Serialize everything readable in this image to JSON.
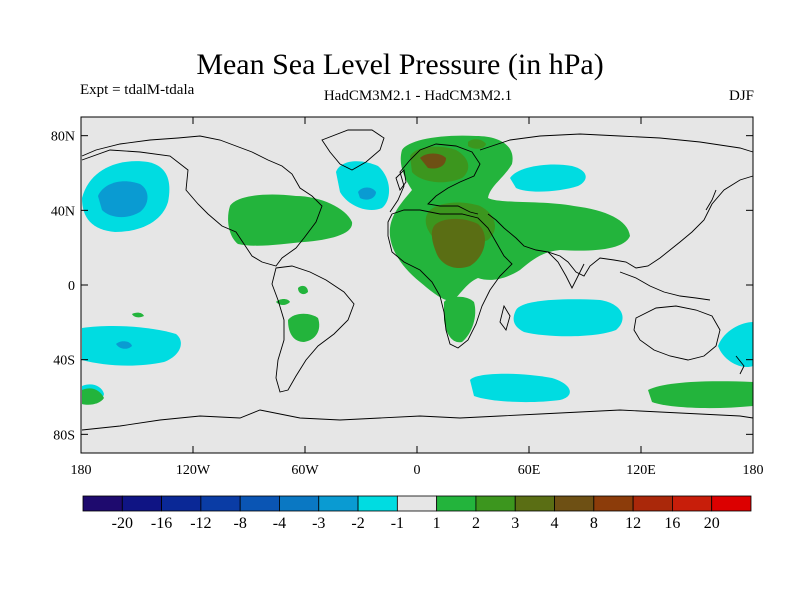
{
  "title": "Mean Sea Level Pressure (in hPa)",
  "subtitle_left": "Expt = tdalM-tdala",
  "subtitle_center": "HadCM3M2.1 - HadCM3M2.1",
  "subtitle_right": "DJF",
  "map": {
    "lat_labels": [
      "80N",
      "40N",
      "0",
      "40S",
      "80S"
    ],
    "lon_labels": [
      "180",
      "120W",
      "60W",
      "0",
      "60E",
      "120E",
      "180"
    ],
    "lat_range": [
      -90,
      90
    ],
    "lon_range": [
      -180,
      180
    ],
    "ocean_color": "#e6e6e6"
  },
  "colorbar": {
    "labels": [
      "-20",
      "-16",
      "-12",
      "-8",
      "-4",
      "-3",
      "-2",
      "-1",
      "1",
      "2",
      "3",
      "4",
      "8",
      "12",
      "16",
      "20"
    ],
    "colors": [
      "#1e0a6e",
      "#0f1484",
      "#0a2896",
      "#0a3ca5",
      "#0a55b4",
      "#0a78c3",
      "#0a9bd2",
      "#00dce1",
      "#e6e6e6",
      "#23b43c",
      "#3c961e",
      "#5a6e14",
      "#6e5014",
      "#8c3c0a",
      "#aa280a",
      "#c81e0a",
      "#dc0000"
    ]
  },
  "season": "DJF"
}
